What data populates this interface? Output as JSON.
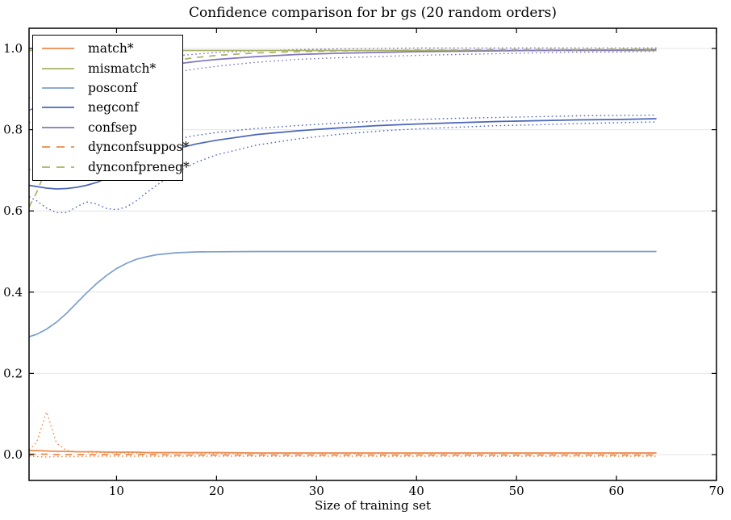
{
  "chart_data": {
    "type": "line",
    "title": "Confidence comparison for br gs (20 random orders)",
    "xlabel": "Size of training set",
    "ylabel": "",
    "xlim": [
      1.25,
      70
    ],
    "ylim": [
      -0.064,
      1.05
    ],
    "xticks": [
      10,
      20,
      30,
      40,
      50,
      60,
      70
    ],
    "ytick_labels": [
      "0.0",
      "0.2",
      "0.4",
      "0.6",
      "0.8",
      "1.0"
    ],
    "ytick_values": [
      0.0,
      0.2,
      0.4,
      0.6,
      0.8,
      1.0
    ],
    "grid": "horizontal",
    "grid_color": "#e4e4e4",
    "axis_color": "#000000",
    "legend_position": "upper-left",
    "legend": {
      "entries": [
        {
          "label": "match*",
          "color": "#EC8A4C",
          "dash": "solid"
        },
        {
          "label": "mismatch*",
          "color": "#A8B266",
          "dash": "solid"
        },
        {
          "label": "posconf",
          "color": "#7C9FCC",
          "dash": "solid"
        },
        {
          "label": "negconf",
          "color": "#4A66B8",
          "dash": "solid"
        },
        {
          "label": "confsep",
          "color": "#8276BC",
          "dash": "solid"
        },
        {
          "label": "dynconfsuppos*",
          "color": "#EC8A4C",
          "dash": "dashed"
        },
        {
          "label": "dynconfpreneg*",
          "color": "#A8B266",
          "dash": "dashed"
        }
      ]
    },
    "x": [
      1.25,
      2,
      3,
      4,
      5,
      6,
      7,
      8,
      9,
      10,
      11,
      12,
      13,
      14,
      16,
      18,
      20,
      24,
      28,
      32,
      36,
      40,
      44,
      48,
      52,
      56,
      60,
      64
    ],
    "series": [
      {
        "name": "negconf-upper-band",
        "color": "#4A66B8",
        "style": "dotted",
        "band": true,
        "values": [
          0.702,
          0.701,
          0.699,
          0.698,
          0.699,
          0.702,
          0.707,
          0.713,
          0.722,
          0.731,
          0.741,
          0.75,
          0.758,
          0.765,
          0.777,
          0.786,
          0.793,
          0.803,
          0.81,
          0.816,
          0.821,
          0.825,
          0.828,
          0.83,
          0.832,
          0.834,
          0.835,
          0.836
        ]
      },
      {
        "name": "negconf-lower-band",
        "color": "#4A66B8",
        "style": "dotted",
        "band": true,
        "values": [
          0.635,
          0.625,
          0.607,
          0.596,
          0.596,
          0.61,
          0.622,
          0.617,
          0.606,
          0.603,
          0.61,
          0.625,
          0.645,
          0.663,
          0.695,
          0.72,
          0.738,
          0.762,
          0.777,
          0.788,
          0.796,
          0.802,
          0.806,
          0.81,
          0.812,
          0.815,
          0.817,
          0.819
        ]
      },
      {
        "name": "confsep-upper-band",
        "color": "#8276BC",
        "style": "dotted",
        "band": true,
        "values": [
          0.878,
          0.886,
          0.899,
          0.911,
          0.922,
          0.931,
          0.94,
          0.947,
          0.953,
          0.959,
          0.964,
          0.968,
          0.972,
          0.976,
          0.982,
          0.986,
          0.99,
          0.994,
          0.997,
          0.999,
          1.0,
          1.001,
          1.001,
          1.001,
          1.001,
          1.001,
          1.001,
          1.001
        ]
      },
      {
        "name": "confsep-lower-band",
        "color": "#8276BC",
        "style": "dotted",
        "band": true,
        "values": [
          0.818,
          0.824,
          0.837,
          0.849,
          0.86,
          0.871,
          0.88,
          0.889,
          0.897,
          0.905,
          0.912,
          0.92,
          0.926,
          0.932,
          0.942,
          0.95,
          0.956,
          0.966,
          0.973,
          0.977,
          0.98,
          0.983,
          0.985,
          0.987,
          0.989,
          0.991,
          0.991,
          0.993
        ]
      },
      {
        "name": "dynconfsuppos-upper-band",
        "color": "#EC8A4C",
        "style": "dotted",
        "band": true,
        "values": [
          0.012,
          0.03,
          0.105,
          0.028,
          0.01,
          0.007,
          0.006,
          0.005,
          0.005,
          0.004,
          0.004,
          0.004,
          0.004,
          0.004,
          0.004,
          0.003,
          0.003,
          0.003,
          0.003,
          0.003,
          0.003,
          0.003,
          0.003,
          0.003,
          0.003,
          0.003,
          0.003,
          0.003
        ]
      },
      {
        "name": "dynconfsuppos-lower-band",
        "color": "#EC8A4C",
        "style": "dotted",
        "band": true,
        "values": [
          -0.004,
          -0.005,
          -0.006,
          -0.005,
          -0.005,
          -0.005,
          -0.004,
          -0.004,
          -0.004,
          -0.004,
          -0.004,
          -0.004,
          -0.004,
          -0.004,
          -0.004,
          -0.004,
          -0.004,
          -0.004,
          -0.004,
          -0.004,
          -0.004,
          -0.004,
          -0.004,
          -0.004,
          -0.004,
          -0.004,
          -0.004,
          -0.004
        ]
      },
      {
        "name": "mismatch",
        "color": "#A8B266",
        "style": "solid",
        "band": false,
        "values": [
          0.995,
          0.995,
          0.995,
          0.995,
          0.995,
          0.995,
          0.995,
          0.995,
          0.995,
          0.995,
          0.995,
          0.995,
          0.995,
          0.995,
          0.995,
          0.995,
          0.995,
          0.995,
          0.995,
          0.995,
          0.995,
          0.995,
          0.995,
          0.995,
          0.995,
          0.995,
          0.995,
          0.995
        ]
      },
      {
        "name": "posconf",
        "color": "#7C9FCC",
        "style": "solid",
        "band": false,
        "values": [
          0.29,
          0.296,
          0.309,
          0.326,
          0.348,
          0.373,
          0.398,
          0.421,
          0.441,
          0.458,
          0.471,
          0.481,
          0.487,
          0.492,
          0.497,
          0.499,
          0.4995,
          0.5,
          0.5,
          0.5,
          0.5,
          0.5,
          0.5,
          0.5,
          0.5,
          0.5,
          0.5,
          0.5
        ]
      },
      {
        "name": "negconf",
        "color": "#4A66B8",
        "style": "solid",
        "band": false,
        "values": [
          0.663,
          0.66,
          0.656,
          0.654,
          0.655,
          0.658,
          0.663,
          0.67,
          0.68,
          0.692,
          0.704,
          0.716,
          0.727,
          0.737,
          0.753,
          0.765,
          0.774,
          0.788,
          0.797,
          0.804,
          0.81,
          0.814,
          0.817,
          0.82,
          0.822,
          0.824,
          0.825,
          0.827
        ]
      },
      {
        "name": "confsep",
        "color": "#8276BC",
        "style": "solid",
        "band": false,
        "values": [
          0.848,
          0.855,
          0.868,
          0.88,
          0.891,
          0.901,
          0.91,
          0.918,
          0.925,
          0.932,
          0.938,
          0.944,
          0.949,
          0.954,
          0.962,
          0.968,
          0.973,
          0.98,
          0.985,
          0.988,
          0.99,
          0.992,
          0.993,
          0.994,
          0.995,
          0.996,
          0.996,
          0.997
        ]
      },
      {
        "name": "match",
        "color": "#EC8A4C",
        "style": "solid",
        "band": false,
        "values": [
          0.01,
          0.01,
          0.009,
          0.008,
          0.008,
          0.007,
          0.007,
          0.007,
          0.006,
          0.006,
          0.006,
          0.006,
          0.005,
          0.005,
          0.005,
          0.005,
          0.005,
          0.004,
          0.004,
          0.004,
          0.004,
          0.004,
          0.004,
          0.004,
          0.004,
          0.004,
          0.004,
          0.004
        ]
      },
      {
        "name": "dynconfsuppos",
        "color": "#EC8A4C",
        "style": "dashed",
        "band": false,
        "values": [
          0.001,
          0.001,
          0.001,
          0.0,
          0.0,
          0.0,
          0.0,
          0.0,
          0.0,
          0.0,
          0.0,
          0.0,
          0.0,
          0.0,
          -0.001,
          -0.001,
          -0.001,
          -0.001,
          -0.001,
          -0.001,
          -0.001,
          -0.001,
          -0.001,
          -0.001,
          -0.001,
          -0.001,
          -0.001,
          -0.001
        ]
      },
      {
        "name": "dynconfpreneg",
        "color": "#A8B266",
        "style": "dashed",
        "band": false,
        "values": [
          0.61,
          0.645,
          0.705,
          0.758,
          0.802,
          0.839,
          0.869,
          0.893,
          0.911,
          0.926,
          0.938,
          0.947,
          0.955,
          0.961,
          0.971,
          0.978,
          0.983,
          0.989,
          0.992,
          0.994,
          0.995,
          0.996,
          0.996,
          0.997,
          0.997,
          0.997,
          0.998,
          0.998
        ]
      }
    ]
  }
}
